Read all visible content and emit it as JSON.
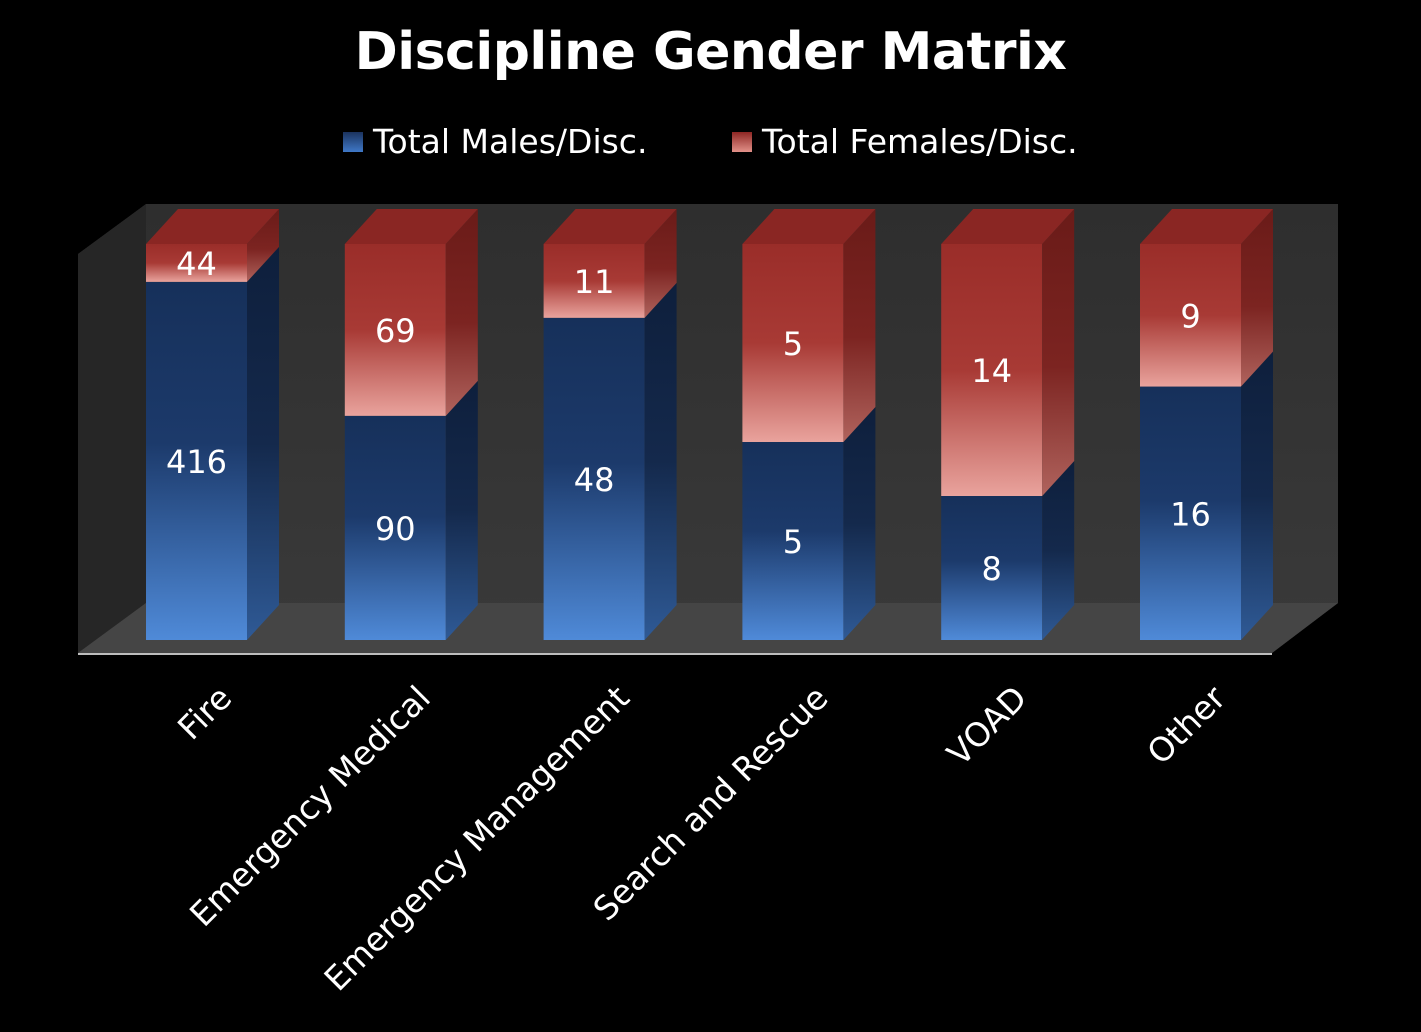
{
  "chart_data": {
    "type": "bar",
    "stacked": true,
    "style": "3d",
    "title": "Discipline Gender Matrix",
    "legend_position": "top",
    "categories": [
      "Fire",
      "Emergency Medical",
      "Emergency Management",
      "Search and Rescue",
      "VOAD",
      "Other"
    ],
    "series": [
      {
        "name": "Total Males/Disc.",
        "values": [
          416,
          90,
          48,
          5,
          8,
          16
        ],
        "color": "#1f3a6a"
      },
      {
        "name": "Total Females/Disc.",
        "values": [
          44,
          69,
          11,
          5,
          14,
          9
        ],
        "color": "#a3302c"
      }
    ],
    "stacking": "percent",
    "ylim": [
      0,
      100
    ],
    "grid": false,
    "xlabel": "",
    "ylabel": ""
  },
  "colors": {
    "background": "#000000",
    "males": "#1f3a6a",
    "males_light": "#4f88d6",
    "females": "#a3302c",
    "females_light": "#e7a09a",
    "walls": "#2b2b2b",
    "floor": "#3a3a3a"
  }
}
